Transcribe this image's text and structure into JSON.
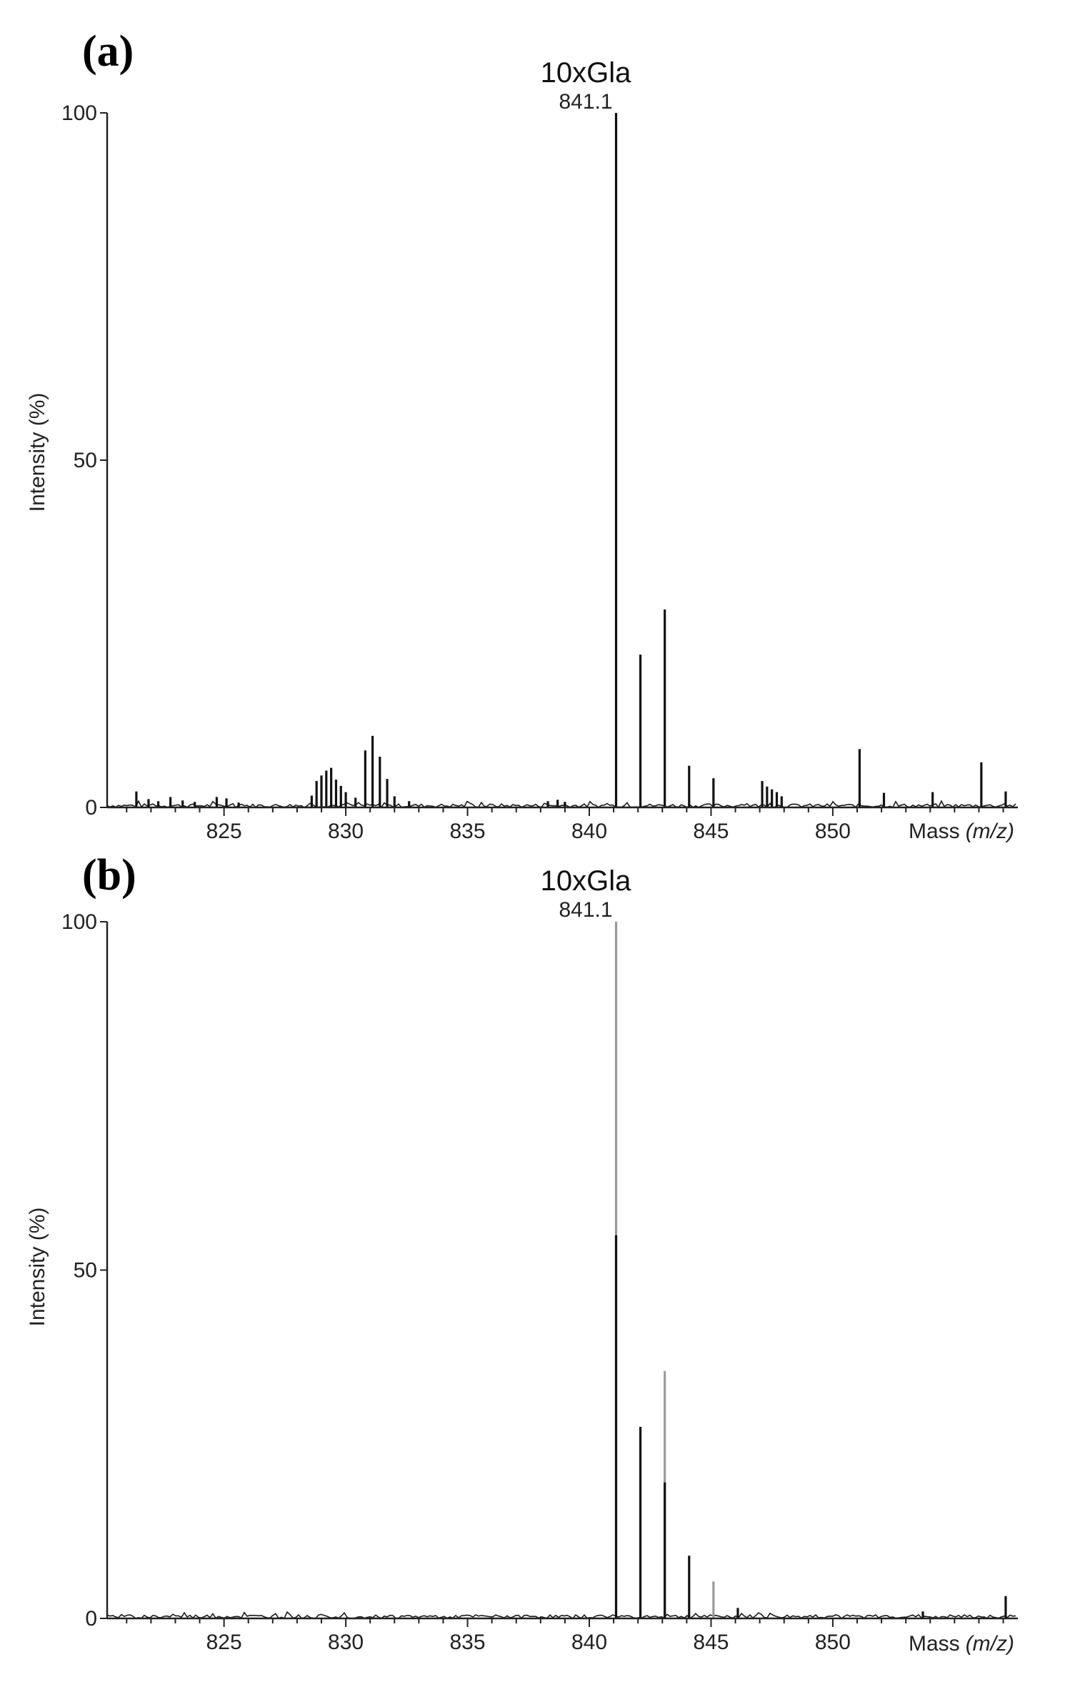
{
  "chart_data": [
    {
      "panel": "(a)",
      "type": "bar",
      "title": "10xGla",
      "peak_label": "841.1",
      "xlabel": "Mass",
      "xlabel_unit": "(m/z)",
      "ylabel": "Intensity (%)",
      "xlim": [
        820.2,
        857.6
      ],
      "ylim": [
        0,
        100
      ],
      "xticks": [
        825,
        830,
        835,
        840,
        845,
        850
      ],
      "yticks": [
        0,
        50,
        100
      ],
      "peaks": [
        {
          "x": 821.4,
          "y": 2.3
        },
        {
          "x": 821.9,
          "y": 1.2
        },
        {
          "x": 822.3,
          "y": 0.9
        },
        {
          "x": 822.8,
          "y": 1.5
        },
        {
          "x": 823.3,
          "y": 1.0
        },
        {
          "x": 823.8,
          "y": 0.8
        },
        {
          "x": 824.7,
          "y": 1.5
        },
        {
          "x": 825.1,
          "y": 1.3
        },
        {
          "x": 825.6,
          "y": 0.7
        },
        {
          "x": 828.6,
          "y": 1.7
        },
        {
          "x": 828.8,
          "y": 3.8
        },
        {
          "x": 829.0,
          "y": 4.6
        },
        {
          "x": 829.2,
          "y": 5.3
        },
        {
          "x": 829.4,
          "y": 5.7
        },
        {
          "x": 829.6,
          "y": 4.0
        },
        {
          "x": 829.8,
          "y": 3.1
        },
        {
          "x": 830.0,
          "y": 2.2
        },
        {
          "x": 830.4,
          "y": 1.4
        },
        {
          "x": 830.8,
          "y": 8.2
        },
        {
          "x": 831.1,
          "y": 10.3
        },
        {
          "x": 831.4,
          "y": 7.3
        },
        {
          "x": 831.7,
          "y": 4.1
        },
        {
          "x": 832.0,
          "y": 1.6
        },
        {
          "x": 832.6,
          "y": 0.9
        },
        {
          "x": 838.3,
          "y": 0.9
        },
        {
          "x": 838.7,
          "y": 1.1
        },
        {
          "x": 839.0,
          "y": 0.8
        },
        {
          "x": 841.1,
          "y": 100.0
        },
        {
          "x": 842.1,
          "y": 22.0
        },
        {
          "x": 843.1,
          "y": 28.5
        },
        {
          "x": 844.1,
          "y": 6.0
        },
        {
          "x": 845.1,
          "y": 4.2
        },
        {
          "x": 847.1,
          "y": 3.8
        },
        {
          "x": 847.3,
          "y": 3.0
        },
        {
          "x": 847.5,
          "y": 2.6
        },
        {
          "x": 847.7,
          "y": 2.2
        },
        {
          "x": 847.9,
          "y": 1.6
        },
        {
          "x": 851.1,
          "y": 8.4
        },
        {
          "x": 852.1,
          "y": 2.1
        },
        {
          "x": 854.1,
          "y": 2.2
        },
        {
          "x": 856.1,
          "y": 6.5
        },
        {
          "x": 857.1,
          "y": 2.3
        }
      ]
    },
    {
      "panel": "(b)",
      "type": "bar",
      "title": "10xGla",
      "peak_label": "841.1",
      "xlabel": "Mass",
      "xlabel_unit": "(m/z)",
      "ylabel": "Intensity (%)",
      "xlim": [
        820.2,
        857.6
      ],
      "ylim": [
        0,
        100
      ],
      "xticks": [
        825,
        830,
        835,
        840,
        845,
        850
      ],
      "yticks": [
        0,
        50,
        100
      ],
      "peaks": [
        {
          "x": 841.1,
          "y": 100.0
        },
        {
          "x": 842.1,
          "y": 27.5
        },
        {
          "x": 843.1,
          "y": 35.5
        },
        {
          "x": 844.1,
          "y": 9.0
        },
        {
          "x": 845.1,
          "y": 5.3
        },
        {
          "x": 846.1,
          "y": 1.5
        },
        {
          "x": 853.7,
          "y": 1.0
        },
        {
          "x": 857.1,
          "y": 3.2
        }
      ]
    }
  ]
}
